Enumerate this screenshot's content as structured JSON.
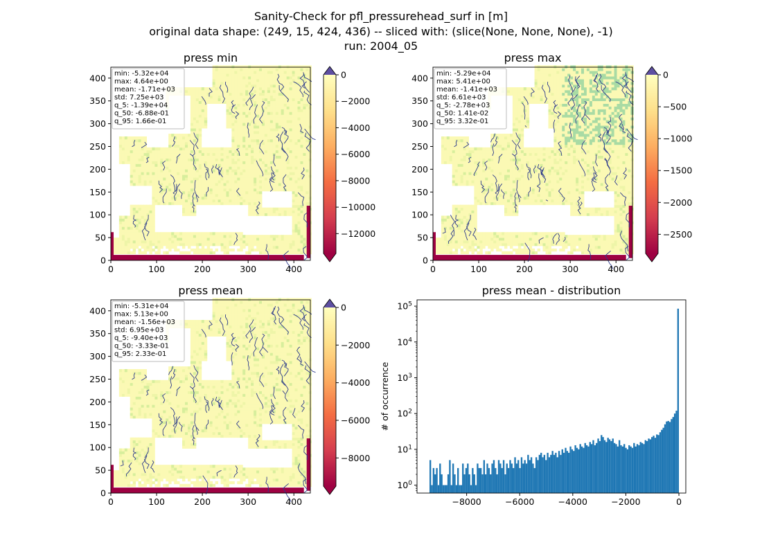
{
  "figure": {
    "title_line1": "Sanity-Check for pfl_pressurehead_surf in [m]",
    "title_line2": "original data shape: (249, 15, 424, 436) -- sliced with: (slice(None, None, None), -1)",
    "title_line3": "run: 2004_05"
  },
  "colormap": {
    "name": "Spectral",
    "over_color": "#5e4fa2",
    "under_color": "#9e0142",
    "stops": [
      "#9e0142",
      "#d53e4f",
      "#f46d43",
      "#fdae61",
      "#fee08b",
      "#ffffbf"
    ],
    "land_color": "#fbf9b4",
    "river_color": "#2c3a8c",
    "ocean_color": "#ffffff"
  },
  "chart_data": [
    {
      "type": "heatmap",
      "title": "press min",
      "xlim": [
        0,
        436
      ],
      "ylim": [
        0,
        424
      ],
      "x_ticks": [
        0,
        100,
        200,
        300,
        400
      ],
      "y_ticks": [
        0,
        50,
        100,
        150,
        200,
        250,
        300,
        350,
        400
      ],
      "colorbar": {
        "vmin": -13500,
        "vmax": 0,
        "ticks": [
          0,
          -2000,
          -4000,
          -6000,
          -8000,
          -10000,
          -12000
        ],
        "tick_labels": [
          "0",
          "−2000",
          "−4000",
          "−6000",
          "−8000",
          "−10000",
          "−12000"
        ],
        "extend": "both"
      },
      "stats": [
        "min: -5.32e+04",
        "max: 4.64e+00",
        "mean: -1.71e+03",
        "std: 7.25e+03",
        "q_5: -1.39e+04",
        "q_50: -6.88e-01",
        "q_95: 1.66e-01"
      ],
      "river_density": 0.7
    },
    {
      "type": "heatmap",
      "title": "press max",
      "xlim": [
        0,
        436
      ],
      "ylim": [
        0,
        424
      ],
      "x_ticks": [
        0,
        100,
        200,
        300,
        400
      ],
      "y_ticks": [
        0,
        50,
        100,
        150,
        200,
        250,
        300,
        350,
        400
      ],
      "colorbar": {
        "vmin": -2800,
        "vmax": 0,
        "ticks": [
          0,
          -500,
          -1000,
          -1500,
          -2000,
          -2500
        ],
        "tick_labels": [
          "0",
          "−500",
          "−1000",
          "−1500",
          "−2000",
          "−2500"
        ],
        "extend": "both"
      },
      "stats": [
        "min: -5.29e+04",
        "max: 5.41e+00",
        "mean: -1.41e+03",
        "std: 6.61e+03",
        "q_5: -2.78e+03",
        "q_50: 1.41e-02",
        "q_95: 3.32e-01"
      ],
      "river_density": 1.0
    },
    {
      "type": "heatmap",
      "title": "press mean",
      "xlim": [
        0,
        436
      ],
      "ylim": [
        0,
        424
      ],
      "x_ticks": [
        0,
        100,
        200,
        300,
        400
      ],
      "y_ticks": [
        0,
        50,
        100,
        150,
        200,
        250,
        300,
        350,
        400
      ],
      "colorbar": {
        "vmin": -9500,
        "vmax": 0,
        "ticks": [
          0,
          -2000,
          -4000,
          -6000,
          -8000
        ],
        "tick_labels": [
          "0",
          "−2000",
          "−4000",
          "−6000",
          "−8000"
        ],
        "extend": "both"
      },
      "stats": [
        "min: -5.31e+04",
        "max: 5.13e+00",
        "mean: -1.56e+03",
        "std: 6.95e+03",
        "q_5: -9.40e+03",
        "q_50: -3.33e-01",
        "q_95: 2.33e-01"
      ],
      "river_density": 0.85
    },
    {
      "type": "bar",
      "title": "press mean - distribution",
      "ylabel": "# of occurrence",
      "xlabel": "",
      "yscale": "log",
      "xlim": [
        -9870,
        260
      ],
      "ylim": [
        0.6,
        150000
      ],
      "x_ticks": [
        -8000,
        -6000,
        -4000,
        -2000,
        0
      ],
      "x_tick_labels": [
        "−8000",
        "−6000",
        "−4000",
        "−2000",
        "0"
      ],
      "y_ticks": [
        1,
        10,
        100,
        1000,
        10000,
        100000
      ],
      "y_tick_labels": [
        "10^0",
        "10^1",
        "10^2",
        "10^3",
        "10^4",
        "10^5"
      ],
      "bar_color": "#1f77b4",
      "bin_range": [
        -9400,
        0
      ],
      "bin_counts": [
        5,
        1,
        3,
        2,
        3,
        1,
        4,
        2,
        1,
        1,
        1,
        2,
        5,
        1,
        4,
        2,
        1,
        3,
        1,
        1,
        4,
        2,
        3,
        4,
        2,
        1,
        3,
        2,
        1,
        4,
        3,
        3,
        2,
        5,
        2,
        4,
        3,
        2,
        4,
        5,
        3,
        2,
        5,
        4,
        3,
        5,
        2,
        4,
        3,
        5,
        4,
        3,
        6,
        4,
        5,
        3,
        6,
        4,
        5,
        4,
        7,
        5,
        6,
        4,
        3,
        6,
        5,
        7,
        8,
        6,
        7,
        5,
        8,
        6,
        7,
        9,
        7,
        8,
        6,
        9,
        7,
        10,
        8,
        11,
        9,
        8,
        12,
        10,
        9,
        13,
        11,
        10,
        14,
        12,
        11,
        15,
        13,
        12,
        16,
        14,
        18,
        13,
        15,
        20,
        17,
        25,
        22,
        18,
        16,
        21,
        19,
        17,
        20,
        15,
        14,
        12,
        18,
        13,
        12,
        14,
        11,
        10,
        13,
        12,
        11,
        15,
        12,
        14,
        13,
        16,
        15,
        14,
        18,
        17,
        20,
        19,
        22,
        24,
        21,
        26,
        25,
        30,
        35,
        40,
        50,
        60,
        62,
        58,
        70,
        80,
        100,
        120,
        85000
      ]
    }
  ]
}
